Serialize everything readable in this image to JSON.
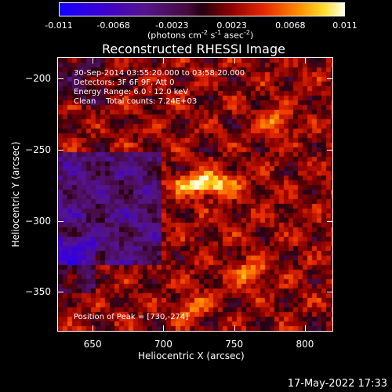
{
  "colorbar": {
    "ticks": [
      "-0.011",
      "-0.0068",
      "-0.0023",
      "0.0023",
      "0.0068",
      "0.011"
    ],
    "tick_values": [
      -0.011,
      -0.0068,
      -0.0023,
      0.0023,
      0.0068,
      0.011
    ],
    "units_prefix": "(photons cm",
    "units_exp1": "-2",
    "units_mid": " s",
    "units_exp2": "-1",
    "units_mid2": " asec",
    "units_exp3": "-2",
    "units_suffix": ")"
  },
  "annotations": {
    "line1": "30-Sep-2014 03:55:20.000 to 03:58:20.000",
    "line2": "Detectors: 3F 6F 9F, Att 0",
    "line3": "Energy Range: 6.0 - 12.0 keV",
    "line4": "Clean    Total counts: 7.24E+03",
    "peak": "Position of Peak = [730,-274]"
  },
  "timestamp": "17-May-2022 17:33",
  "chart_data": {
    "type": "heatmap",
    "title": "Reconstructed RHESSI Image",
    "xlabel": "Heliocentric X (arcsec)",
    "ylabel": "Heliocentric Y (arcsec)",
    "xlim": [
      625,
      820
    ],
    "ylim": [
      -378,
      -185
    ],
    "xticks": [
      650,
      700,
      750,
      800
    ],
    "xtick_labels": [
      "650",
      "700",
      "750",
      "800"
    ],
    "yticks": [
      -200,
      -250,
      -300,
      -350
    ],
    "ytick_labels": [
      "−200",
      "−250",
      "−300",
      "−350"
    ],
    "value_range": [
      -0.011,
      0.011
    ],
    "colormap": "blue-purple-red-yellow-white (IDL color table 3 style)",
    "peak_position": [
      730,
      -274
    ],
    "bright_sources": [
      {
        "x": 730,
        "y": -274,
        "relative_intensity": 1.0
      },
      {
        "x": 762,
        "y": -337,
        "relative_intensity": 0.65
      },
      {
        "x": 720,
        "y": -362,
        "relative_intensity": 0.45
      },
      {
        "x": 782,
        "y": -231,
        "relative_intensity": 0.55
      }
    ],
    "negative_region": {
      "x_range": [
        625,
        700
      ],
      "y_range": [
        -330,
        -250
      ]
    }
  }
}
